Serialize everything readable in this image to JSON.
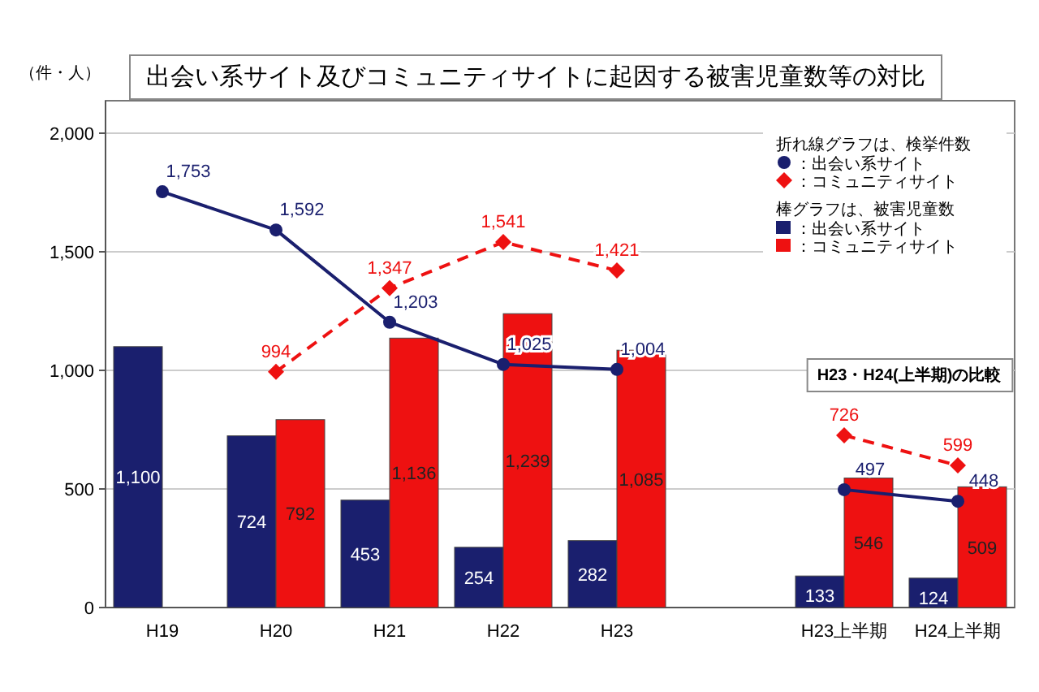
{
  "chart_data": {
    "type": "bar",
    "title": "出会い系サイト及びコミュニティサイトに起因する被害児童数等の対比",
    "ylabel": "（件・人）",
    "categories": [
      "H19",
      "H20",
      "H21",
      "H22",
      "H23",
      null,
      "H23上半期",
      "H24上半期"
    ],
    "series": [
      {
        "name": "：出会い系サイト",
        "color": "#1a1f6e",
        "values": [
          1100,
          724,
          453,
          254,
          282,
          null,
          133,
          124
        ],
        "value_labels": [
          "1,100",
          "724",
          "453",
          "254",
          "282",
          null,
          "133",
          "124"
        ]
      },
      {
        "name": "：コミュニティサイト",
        "color": "#ee1111",
        "values": [
          null,
          792,
          1136,
          1239,
          1085,
          null,
          546,
          509
        ],
        "value_labels": [
          null,
          "792",
          "1,136",
          "1,239",
          "1,085",
          null,
          "546",
          "509"
        ]
      },
      {
        "name": "：出会い系サイト",
        "type": "line",
        "color": "#1a1f6e",
        "marker": "circle",
        "line_style": "solid",
        "values": [
          1753,
          1592,
          1203,
          1025,
          1004,
          null,
          497,
          448
        ],
        "value_labels": [
          "1,753",
          "1,592",
          "1,203",
          "1,025",
          "1,004",
          null,
          "497",
          "448"
        ]
      },
      {
        "name": "：コミュニティサイト",
        "type": "line",
        "color": "#ee1111",
        "marker": "diamond",
        "line_style": "dashed",
        "values": [
          null,
          994,
          1347,
          1541,
          1421,
          null,
          726,
          599
        ],
        "value_labels": [
          null,
          "994",
          "1,347",
          "1,541",
          "1,421",
          null,
          "726",
          "599"
        ]
      }
    ],
    "ylim": [
      0,
      2000
    ],
    "yticks": [
      0,
      500,
      {
        "value": 1000,
        "label": "1,000"
      },
      {
        "value": 1500,
        "label": "1,500"
      },
      {
        "value": 2000,
        "label": "2,000"
      }
    ],
    "grid": "y",
    "legend": "top right",
    "annotations": [
      "折れ線グラフは、検挙件数",
      "棒グラフは、被害児童数",
      {
        "text": "H23・H24(上半期)の比較"
      }
    ]
  }
}
